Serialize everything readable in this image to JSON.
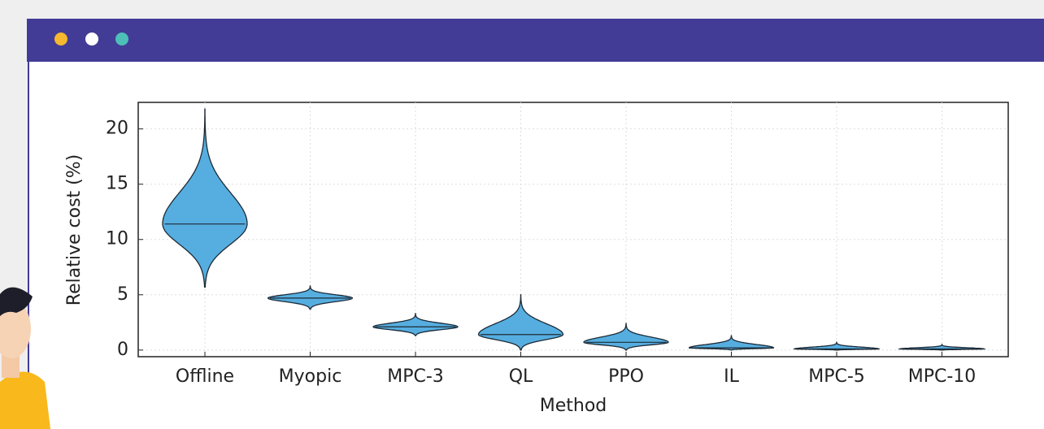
{
  "chart_data": {
    "type": "violin",
    "categories": [
      "Offline",
      "Myopic",
      "MPC-3",
      "QL",
      "PPO",
      "IL",
      "MPC-5",
      "MPC-10"
    ],
    "min": [
      5.7,
      3.7,
      1.3,
      0,
      0,
      0,
      0,
      0
    ],
    "median": [
      11.4,
      4.7,
      2.1,
      1.4,
      0.7,
      0.2,
      0.1,
      0.1
    ],
    "max": [
      21.8,
      5.8,
      3.3,
      5.0,
      2.4,
      1.3,
      0.7,
      0.5
    ],
    "color": "#56aee0",
    "ylabel": "Relative cost (%)",
    "xlabel": "Method",
    "ylim": [
      -0.6,
      22.4
    ],
    "yticks": [
      0,
      5,
      10,
      15,
      20
    ],
    "grid": true
  }
}
